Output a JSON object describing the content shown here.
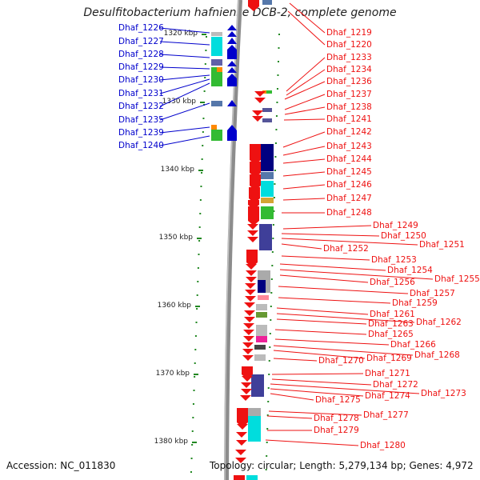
{
  "title": "Desulfitobacterium hafniense DCB-2, complete genome",
  "footer": {
    "accession": "Accession: NC_011830",
    "summary": "Topology: circular; Length: 5,279,134 bp; Genes: 4,972"
  },
  "colors": {
    "left_strand": "#0000cc",
    "right_strand": "#ee1111",
    "tick": "#228822",
    "genome_line": "#8c8c8c"
  },
  "ruler_ticks": [
    "1320 kbp",
    "1330 kbp",
    "1340 kbp",
    "1350 kbp",
    "1360 kbp",
    "1370 kbp",
    "1380 kbp"
  ],
  "left_genes": [
    "Dhaf_1226",
    "Dhaf_1227",
    "Dhaf_1228",
    "Dhaf_1229",
    "Dhaf_1230",
    "Dhaf_1231",
    "Dhaf_1232",
    "Dhaf_1235",
    "Dhaf_1239",
    "Dhaf_1240"
  ],
  "right_genes": [
    "Dhaf_1219",
    "Dhaf_1220",
    "Dhaf_1233",
    "Dhaf_1234",
    "Dhaf_1236",
    "Dhaf_1237",
    "Dhaf_1238",
    "Dhaf_1241",
    "Dhaf_1242",
    "Dhaf_1243",
    "Dhaf_1244",
    "Dhaf_1245",
    "Dhaf_1246",
    "Dhaf_1247",
    "Dhaf_1248",
    "Dhaf_1249",
    "Dhaf_1250",
    "Dhaf_1251",
    "Dhaf_1252",
    "Dhaf_1253",
    "Dhaf_1254",
    "Dhaf_1255",
    "Dhaf_1256",
    "Dhaf_1257",
    "Dhaf_1259",
    "Dhaf_1261",
    "Dhaf_1262",
    "Dhaf_1263",
    "Dhaf_1265",
    "Dhaf_1266",
    "Dhaf_1268",
    "Dhaf_1269",
    "Dhaf_1270",
    "Dhaf_1271",
    "Dhaf_1272",
    "Dhaf_1273",
    "Dhaf_1274",
    "Dhaf_1275",
    "Dhaf_1277",
    "Dhaf_1278",
    "Dhaf_1279",
    "Dhaf_1280"
  ]
}
